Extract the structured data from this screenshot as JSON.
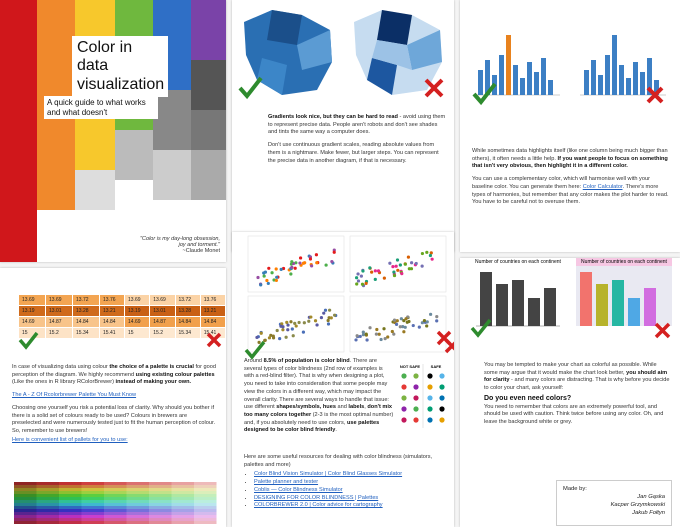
{
  "intro": {
    "title": "Color in data visualization",
    "subtitle": "A quick guide to what works and what doesn't",
    "quote": "\"Color is my day-long obsession, joy and torment.\"",
    "quote_author": "~Claude Monet"
  },
  "gradients": {
    "paragraphs": [
      [
        "Gradients look nice, but they can be hard to read",
        " - avoid using them to represent precise data. People aren't robots and don't see shades and tints the same way a computer does."
      ],
      [
        "Don't use continuous gradient scales, reading absolute values from them is a nightmare. Make fewer, but larger steps. You can represent the precise data in another diagram, if that is necessary."
      ]
    ]
  },
  "highlight": {
    "paragraphs": [
      [
        "While sometimes data highlights itself (like one column being much bigger than others), it often needs a little help. ",
        "If you want people to focus on something that isn't very obvious, then highlight it in a different color."
      ],
      [
        "You can use a complementary color, which will harmonise well with your baseline color. You can generate them here: ",
        "Color Calculator",
        ". There's more types of harmonies, but remember that any color makes the plot harder to read. You have to be careful not to overuse them."
      ]
    ]
  },
  "palettes": {
    "tables": [
      [
        [
          "13.69",
          "13.69",
          "13.72",
          "13.76"
        ],
        [
          "13.19",
          "13.01",
          "13.28",
          "13.21"
        ],
        [
          "14.69",
          "14.87",
          "14.84",
          "14.84"
        ],
        [
          "15",
          "15.2",
          "15.34",
          "15.41"
        ]
      ],
      [
        [
          "13.69",
          "13.69",
          "13.72",
          "13.76"
        ],
        [
          "13.19",
          "13.01",
          "13.28",
          "13.21"
        ],
        [
          "14.69",
          "14.87",
          "14.84",
          "14.84"
        ],
        [
          "15",
          "15.2",
          "15.34",
          "15.41"
        ]
      ]
    ],
    "paragraphs": [
      [
        "In case of visualizing data using colour ",
        "the choice of a palette is crucial",
        " for good perception of the diagram. We highly recommend ",
        "using existing colour palettes",
        " (Like the ones in R library RColorBrewer) ",
        "instead of making your own."
      ],
      [
        "Choosing one yourself you risk a potential loss of clarity. Why should you bother if there is a solid set of colours ready to be used? Colours in brewers are preselected and were numerously tested just to fit the human perception of colour. So, remember to use brewers!"
      ]
    ],
    "link": "The A - Z Of Rcolorbrewer Palette You Must Know",
    "list_intro": "Here is convenient list of pallets for you to use:"
  },
  "colorblind": {
    "paragraphs": [
      [
        "Around ",
        "8.5% of population is color blind",
        ". There are several types of color blindness (2nd row of examples is with a red-blind filter). That is why when designing a plot, you need to take into consideration that some people may view the colors in a different way, which may impact the overall clarity. There are several ways to handle that issue: use different ",
        "shapes/symbols, hues",
        " and ",
        "labels",
        ", ",
        "don't mix too many colors together",
        " (2-3 is the most optimal number) and, if you absolutely need to use colors, ",
        "use palettes designed to be color blind friendly",
        "."
      ]
    ],
    "table_headers": [
      "NOT SAFE",
      "SAFE"
    ],
    "resources_intro": "Here are some useful resources for dealing with color blindness (simulators, palettes and more)",
    "resources": [
      "Color Blind Vision Simulator | Color Blind Glasses Simulator",
      "Palette planner and tester",
      "Coblis — Color Blindness Simulator",
      "DESIGNING FOR COLOR BLINDNESS | Palettes",
      "COLORBREWER 2.0 | Color advice for cartography"
    ]
  },
  "clarity": {
    "chart_titles": [
      "Number of countries on each continent",
      "Number of countries on each continent"
    ],
    "paragraphs": [
      [
        "You may be tempted to make your chart as colorful as possible. While some may argue that it would make the chart look better, ",
        "you should aim for clarity",
        " - and  many colors are distracting. That is why before you decide to color your chart, ask yourself:"
      ],
      [
        "You need to remember that colors are an extremely powerful tool, and should be used with caution. Think twice before using any color. Oh, and leave the background white or grey."
      ]
    ],
    "question": "Do you even need colors?"
  },
  "credits": {
    "label": "Made by:",
    "authors": [
      "Jan Gąska",
      "Kacper Grzymkowski",
      "Jakub Fołtyn"
    ]
  }
}
